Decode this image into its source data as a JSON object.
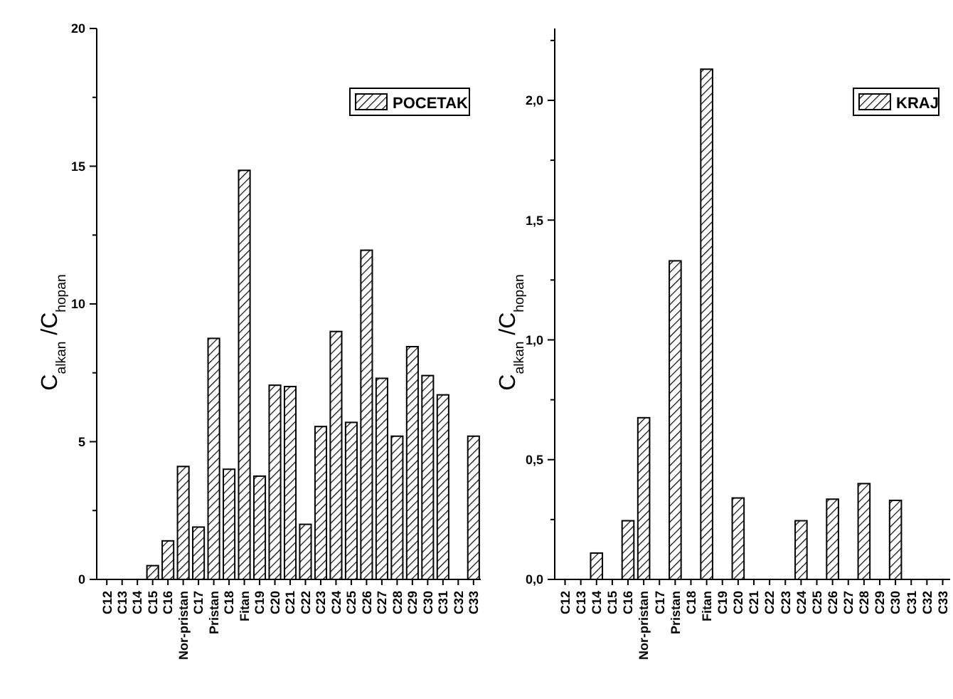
{
  "chart_data": [
    {
      "type": "bar",
      "ylabel": "C$_{alkan}$/C$_{hopan}$",
      "categories": [
        "C12",
        "C13",
        "C14",
        "C15",
        "C16",
        "Nor-pristan",
        "C17",
        "Pristan",
        "C18",
        "Fitan",
        "C19",
        "C20",
        "C21",
        "C22",
        "C23",
        "C24",
        "C25",
        "C26",
        "C27",
        "C28",
        "C29",
        "C30",
        "C31",
        "C32",
        "C33"
      ],
      "series": [
        {
          "name": "POCETAK",
          "color": "#000000",
          "values": [
            0,
            0,
            0,
            0.5,
            1.4,
            4.1,
            1.9,
            8.75,
            4.0,
            14.85,
            3.75,
            7.05,
            7.0,
            2.0,
            5.55,
            9.0,
            5.7,
            11.95,
            7.3,
            5.2,
            8.45,
            7.4,
            6.7,
            0,
            5.2
          ]
        }
      ],
      "ylim": [
        0,
        20
      ],
      "yticks": [
        0,
        {
          "value": 2.5,
          "label": null
        },
        5,
        {
          "value": 7.5,
          "label": null
        },
        10,
        {
          "value": 12.5,
          "label": null
        },
        15,
        {
          "value": 17.5,
          "label": null
        },
        20
      ],
      "legend": "top right",
      "grid": false
    },
    {
      "type": "bar",
      "ylabel": "C$_{alkan}$/C$_{hopan}$",
      "categories": [
        "C12",
        "C13",
        "C14",
        "C15",
        "C16",
        "Nor-pristan",
        "C17",
        "Pristan",
        "C18",
        "Fitan",
        "C19",
        "C20",
        "C21",
        "C22",
        "C23",
        "C24",
        "C25",
        "C26",
        "C27",
        "C28",
        "C29",
        "C30",
        "C31",
        "C32",
        "C33"
      ],
      "series": [
        {
          "name": "KRAJ",
          "color": "#000000",
          "values": [
            0,
            0,
            0.11,
            0,
            0.245,
            0.675,
            0,
            1.33,
            0,
            2.13,
            0,
            0.34,
            0,
            0,
            0,
            0.245,
            0,
            0.335,
            0,
            0.4,
            0,
            0.33,
            0,
            0,
            0
          ]
        }
      ],
      "ylim": [
        0,
        2.3
      ],
      "yticks": [
        {
          "value": 0,
          "label": "0,0"
        },
        {
          "value": 0.25,
          "label": null
        },
        {
          "value": 0.5,
          "label": "0,5"
        },
        {
          "value": 0.75,
          "label": null
        },
        {
          "value": 1,
          "label": "1,0"
        },
        {
          "value": 1.25,
          "label": null
        },
        {
          "value": 1.5,
          "label": "1,5"
        },
        {
          "value": 1.75,
          "label": null
        },
        {
          "value": 2,
          "label": "2,0"
        },
        {
          "value": 2.25,
          "label": null
        }
      ],
      "legend": "top right",
      "grid": false
    }
  ]
}
